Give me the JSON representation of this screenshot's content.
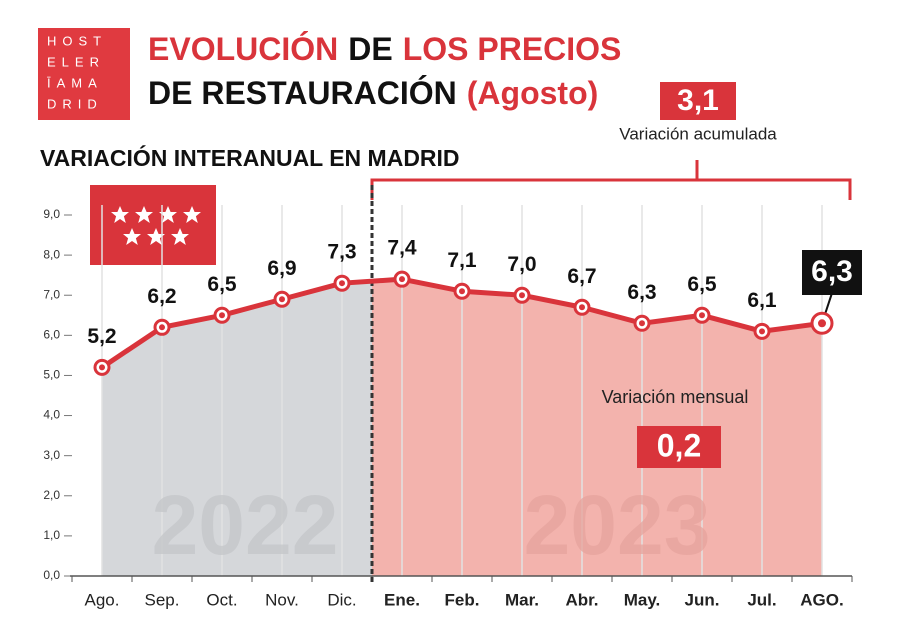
{
  "logo": [
    "HOST",
    "ELER",
    "ĪAMA",
    "DRID"
  ],
  "chart_data": {
    "type": "line",
    "title": [
      [
        {
          "text": "EVOLUCIÓN",
          "color": "#d9343b"
        },
        {
          "text": "DE",
          "color": "#111111"
        },
        {
          "text": "LOS PRECIOS",
          "color": "#d9343b"
        }
      ],
      [
        {
          "text": "DE RESTAURACIÓN",
          "color": "#111111"
        },
        {
          "text": "(Agosto)",
          "color": "#d9343b"
        }
      ]
    ],
    "subtitle": "VARIACIÓN INTERANUAL EN MADRID",
    "categories": [
      "Ago.",
      "Sep.",
      "Oct.",
      "Nov.",
      "Dic.",
      "Ene.",
      "Feb.",
      "Mar.",
      "Abr.",
      "May.",
      "Jun.",
      "Jul.",
      "AGO."
    ],
    "series": [
      {
        "color": "#d9343b",
        "values": [
          5.2,
          6.2,
          6.5,
          6.9,
          7.3,
          7.4,
          7.1,
          7.0,
          6.7,
          6.3,
          6.5,
          6.1,
          6.3
        ],
        "value_labels": [
          "5,2",
          "6,2",
          "6,5",
          "6,9",
          "7,3",
          "7,4",
          "7,1",
          "7,0",
          "6,7",
          "6,3",
          "6,5",
          "6,1",
          "6,3"
        ]
      }
    ],
    "ylim": [
      0,
      9
    ],
    "yticks": [
      {
        "value": 0,
        "label": "0,0"
      },
      {
        "value": 1,
        "label": "1,0"
      },
      {
        "value": 2,
        "label": "2,0"
      },
      {
        "value": 3,
        "label": "3,0"
      },
      {
        "value": 4,
        "label": "4,0"
      },
      {
        "value": 5,
        "label": "5,0"
      },
      {
        "value": 6,
        "label": "6,0"
      },
      {
        "value": 7,
        "label": "7,0"
      },
      {
        "value": 8,
        "label": "8,0"
      },
      {
        "value": 9,
        "label": "9,0"
      }
    ],
    "periods": [
      "2022",
      "2023"
    ],
    "annotations": {
      "cumulative": "3,1",
      "cumulative_label": "Variación acumulada",
      "monthly_label": "Variación mensual",
      "monthly": "0,2"
    }
  }
}
